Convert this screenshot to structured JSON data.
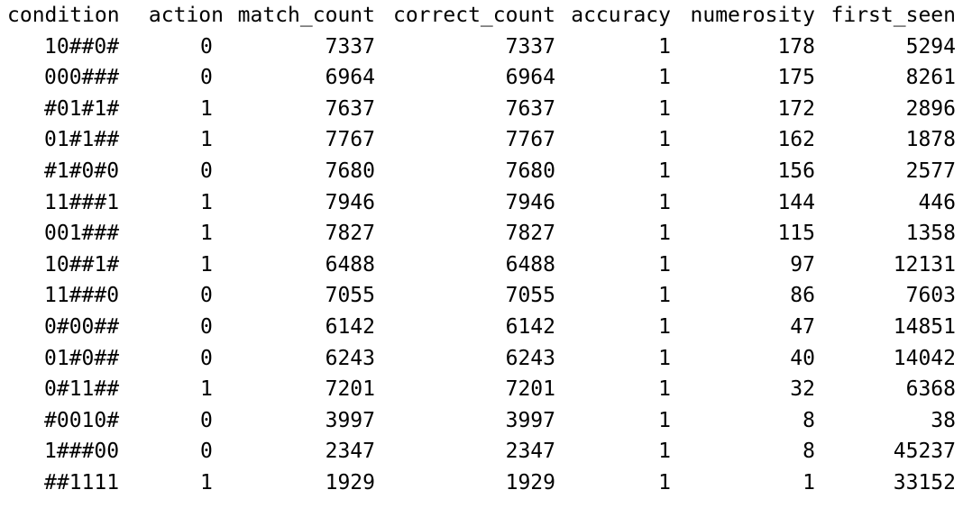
{
  "table": {
    "headers": [
      "condition",
      "action",
      "match_count",
      "correct_count",
      "accuracy",
      "numerosity",
      "first_seen"
    ],
    "rows": [
      [
        "10##0#",
        "0",
        "7337",
        "7337",
        "1",
        "178",
        "5294"
      ],
      [
        "000###",
        "0",
        "6964",
        "6964",
        "1",
        "175",
        "8261"
      ],
      [
        "#01#1#",
        "1",
        "7637",
        "7637",
        "1",
        "172",
        "2896"
      ],
      [
        "01#1##",
        "1",
        "7767",
        "7767",
        "1",
        "162",
        "1878"
      ],
      [
        "#1#0#0",
        "0",
        "7680",
        "7680",
        "1",
        "156",
        "2577"
      ],
      [
        "11###1",
        "1",
        "7946",
        "7946",
        "1",
        "144",
        "446"
      ],
      [
        "001###",
        "1",
        "7827",
        "7827",
        "1",
        "115",
        "1358"
      ],
      [
        "10##1#",
        "1",
        "6488",
        "6488",
        "1",
        "97",
        "12131"
      ],
      [
        "11###0",
        "0",
        "7055",
        "7055",
        "1",
        "86",
        "7603"
      ],
      [
        "0#00##",
        "0",
        "6142",
        "6142",
        "1",
        "47",
        "14851"
      ],
      [
        "01#0##",
        "0",
        "6243",
        "6243",
        "1",
        "40",
        "14042"
      ],
      [
        "0#11##",
        "1",
        "7201",
        "7201",
        "1",
        "32",
        "6368"
      ],
      [
        "#0010#",
        "0",
        "3997",
        "3997",
        "1",
        "8",
        "38"
      ],
      [
        "1###00",
        "0",
        "2347",
        "2347",
        "1",
        "8",
        "45237"
      ],
      [
        "##1111",
        "1",
        "1929",
        "1929",
        "1",
        "1",
        "33152"
      ]
    ]
  }
}
